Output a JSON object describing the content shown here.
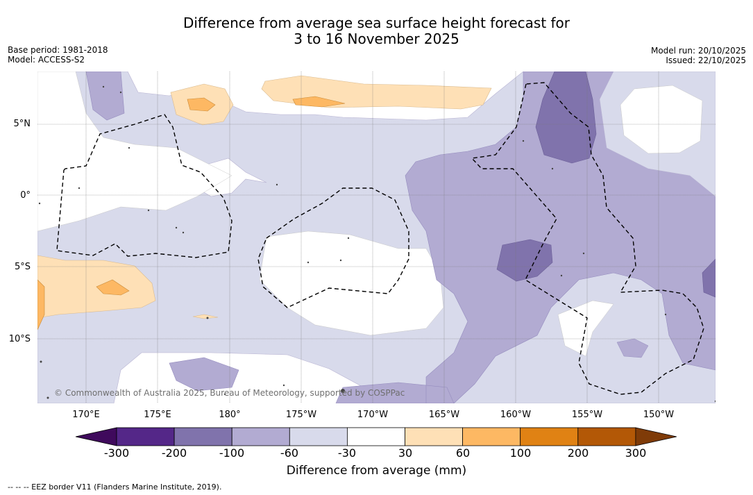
{
  "title": {
    "line1": "Difference from average sea surface height forecast for",
    "line2": "3 to 16 November 2025"
  },
  "meta_left": {
    "base_period": "Base period: 1981-2018",
    "model": "Model: ACCESS-S2"
  },
  "meta_right": {
    "model_run": "Model run: 20/10/2025",
    "issued": "Issued: 22/10/2025"
  },
  "map": {
    "credit": "© Commonwealth of Australia 2025, Bureau of Meteorology, supported by COSPPac",
    "lon_labels": [
      "170°E",
      "175°E",
      "180°",
      "175°W",
      "170°W",
      "165°W",
      "160°W",
      "155°W",
      "150°W"
    ],
    "lat_labels": [
      "5°N",
      "0°",
      "5°S",
      "10°S"
    ]
  },
  "colorbar": {
    "colors": [
      "#3f0a5c",
      "#542788",
      "#8073ac",
      "#b2abd2",
      "#d8daeb",
      "#ffffff",
      "#fee0b6",
      "#fdb863",
      "#e08214",
      "#b35806",
      "#7f3b08"
    ],
    "ticks": [
      "-300",
      "-200",
      "-100",
      "-60",
      "-30",
      "30",
      "60",
      "100",
      "200",
      "300"
    ],
    "label": "Difference from average (mm)"
  },
  "legend": {
    "eez": "--  --  -- EEZ border V11 (Flanders Marine Institute, 2019)."
  }
}
